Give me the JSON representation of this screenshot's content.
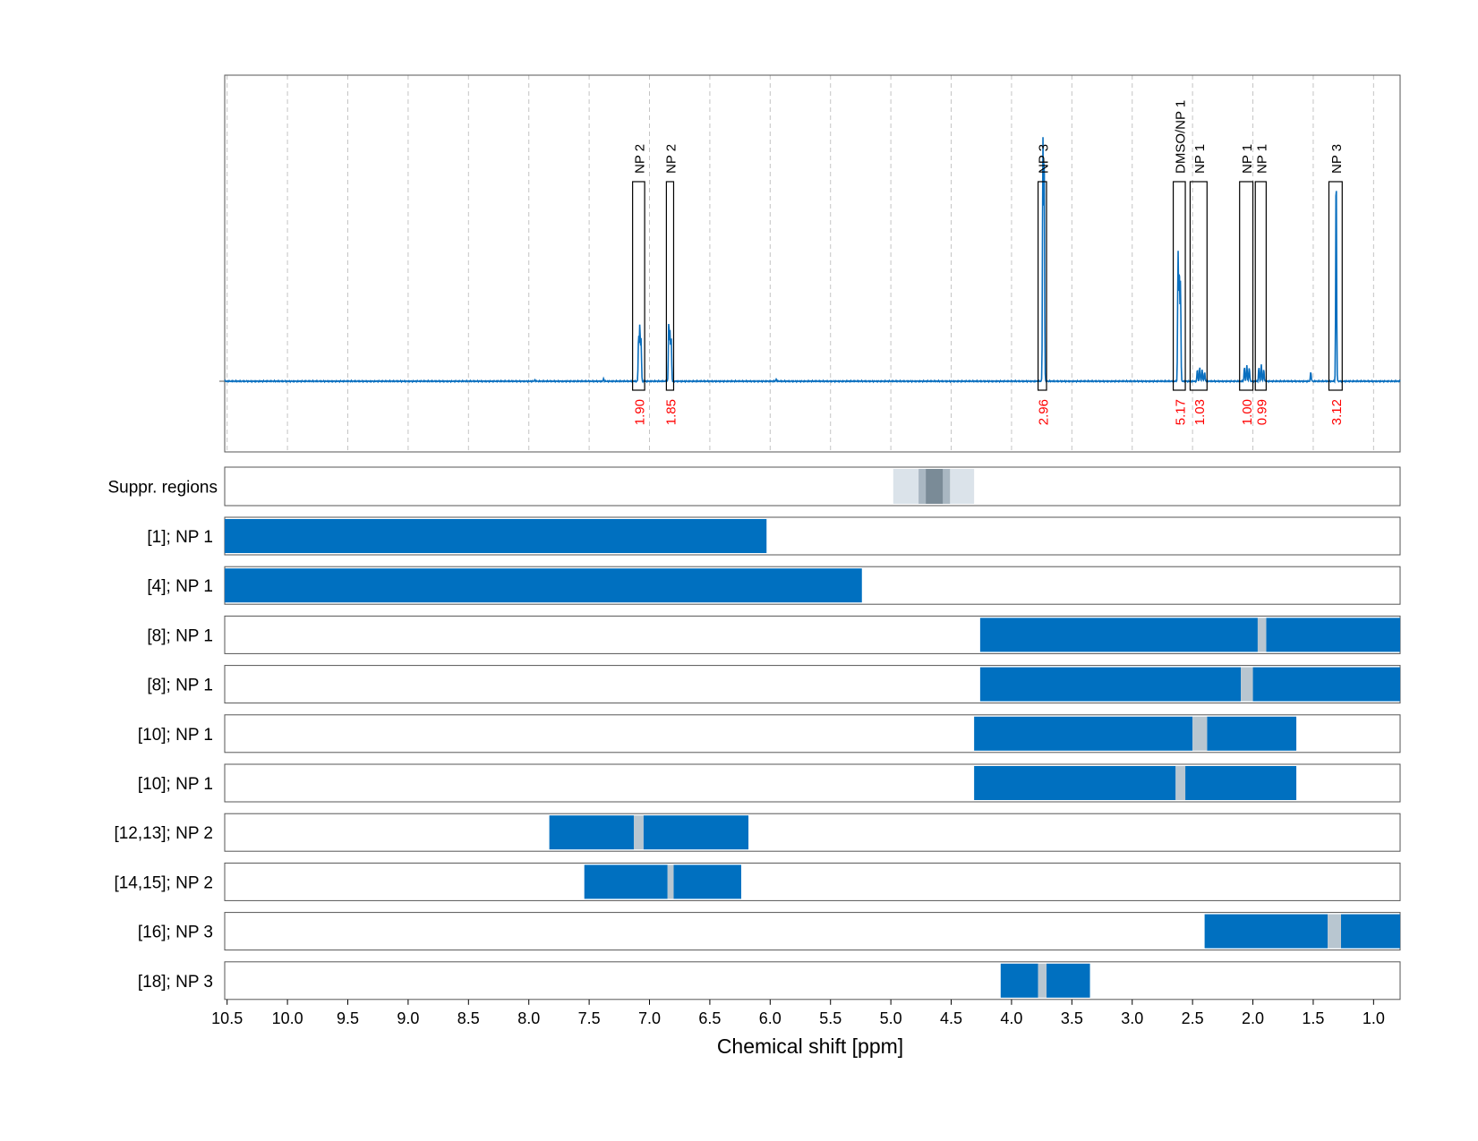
{
  "chart_data": {
    "type": "line",
    "xlabel": "Chemical shift [ppm]",
    "xlim": [
      10.52,
      0.78
    ],
    "x_reversed": true,
    "x_ticks": [
      10.5,
      10.0,
      9.5,
      9.0,
      8.5,
      8.0,
      7.5,
      7.0,
      6.5,
      6.0,
      5.5,
      5.0,
      4.5,
      4.0,
      3.5,
      3.0,
      2.5,
      2.0,
      1.5,
      1.0
    ],
    "x_tick_labels": [
      "10.5",
      "10.0",
      "9.5",
      "9.0",
      "8.5",
      "8.0",
      "7.5",
      "7.0",
      "6.5",
      "6.0",
      "5.5",
      "5.0",
      "4.5",
      "4.0",
      "3.5",
      "3.0",
      "2.5",
      "2.0",
      "1.5",
      "1.0"
    ],
    "grid": "vertical dashed",
    "colors": {
      "signal": "#0a6fbf",
      "bar": "#0070c0",
      "gap": "#b8c6d0",
      "annotation": "#ff0000",
      "frame": "#555555"
    },
    "spectrum": {
      "baseline": 0,
      "ylim": [
        -0.4,
        1.2
      ],
      "peaks": [
        {
          "x": 7.09,
          "h": 0.2
        },
        {
          "x": 7.08,
          "h": 0.24
        },
        {
          "x": 7.07,
          "h": 0.18
        },
        {
          "x": 6.84,
          "h": 0.26
        },
        {
          "x": 6.83,
          "h": 0.21
        },
        {
          "x": 6.82,
          "h": 0.19
        },
        {
          "x": 3.74,
          "h": 1.02
        },
        {
          "x": 3.73,
          "h": 1.0
        },
        {
          "x": 2.62,
          "h": 0.55
        },
        {
          "x": 2.61,
          "h": 0.48
        },
        {
          "x": 2.6,
          "h": 0.42
        },
        {
          "x": 2.46,
          "h": 0.05
        },
        {
          "x": 2.44,
          "h": 0.06
        },
        {
          "x": 2.42,
          "h": 0.05
        },
        {
          "x": 2.4,
          "h": 0.04
        },
        {
          "x": 2.07,
          "h": 0.06
        },
        {
          "x": 2.05,
          "h": 0.07
        },
        {
          "x": 2.03,
          "h": 0.06
        },
        {
          "x": 1.95,
          "h": 0.06
        },
        {
          "x": 1.93,
          "h": 0.07
        },
        {
          "x": 1.91,
          "h": 0.05
        },
        {
          "x": 1.52,
          "h": 0.04
        },
        {
          "x": 1.31,
          "h": 0.92
        },
        {
          "x": 7.95,
          "h": 0.005
        },
        {
          "x": 7.38,
          "h": 0.01
        },
        {
          "x": 5.95,
          "h": 0.008
        }
      ],
      "annotations": [
        {
          "x1": 7.14,
          "x2": 7.04,
          "label": "NP 2",
          "integral": "1.90"
        },
        {
          "x1": 6.86,
          "x2": 6.8,
          "label": "NP 2",
          "integral": "1.85"
        },
        {
          "x1": 3.78,
          "x2": 3.71,
          "label": "NP 3",
          "integral": "2.96"
        },
        {
          "x1": 2.66,
          "x2": 2.56,
          "label": "DMSO/NP 1",
          "integral": "5.17"
        },
        {
          "x1": 2.52,
          "x2": 2.38,
          "label": "NP 1",
          "integral": "1.03"
        },
        {
          "x1": 2.11,
          "x2": 2.0,
          "label": "NP 1",
          "integral": "1.00"
        },
        {
          "x1": 1.98,
          "x2": 1.89,
          "label": "NP 1",
          "integral": "0.99"
        },
        {
          "x1": 1.37,
          "x2": 1.26,
          "label": "NP 3",
          "integral": "3.12"
        }
      ]
    },
    "suppressed_regions": {
      "label": "Suppr. regions",
      "regions": [
        {
          "x1": 4.98,
          "x2": 4.31,
          "shade": "#dbe3ea"
        },
        {
          "x1": 4.77,
          "x2": 4.51,
          "shade": "#a9b7c2"
        },
        {
          "x1": 4.71,
          "x2": 4.57,
          "shade": "#7a8b97"
        }
      ]
    },
    "tracks": [
      {
        "label": "[1]; NP 1",
        "segments": [
          [
            10.52,
            6.03
          ]
        ],
        "gaps": []
      },
      {
        "label": "[4]; NP 1",
        "segments": [
          [
            10.52,
            5.24
          ]
        ],
        "gaps": []
      },
      {
        "label": "[8]; NP 1",
        "segments": [
          [
            4.26,
            1.96
          ],
          [
            1.89,
            0.78
          ]
        ],
        "gaps": [
          [
            1.96,
            1.89
          ]
        ]
      },
      {
        "label": "[8]; NP 1",
        "segments": [
          [
            4.26,
            2.1
          ],
          [
            2.0,
            0.78
          ]
        ],
        "gaps": [
          [
            2.1,
            2.0
          ]
        ]
      },
      {
        "label": "[10]; NP 1",
        "segments": [
          [
            4.31,
            2.5
          ],
          [
            2.38,
            1.64
          ]
        ],
        "gaps": [
          [
            2.5,
            2.38
          ]
        ]
      },
      {
        "label": "[10]; NP 1",
        "segments": [
          [
            4.31,
            2.64
          ],
          [
            2.56,
            1.64
          ]
        ],
        "gaps": [
          [
            2.64,
            2.56
          ]
        ]
      },
      {
        "label": "[12,13]; NP 2",
        "segments": [
          [
            7.83,
            7.13
          ],
          [
            7.05,
            6.18
          ]
        ],
        "gaps": [
          [
            7.13,
            7.05
          ]
        ]
      },
      {
        "label": "[14,15]; NP 2",
        "segments": [
          [
            7.54,
            6.85
          ],
          [
            6.8,
            6.24
          ]
        ],
        "gaps": [
          [
            6.85,
            6.8
          ]
        ]
      },
      {
        "label": "[16]; NP 3",
        "segments": [
          [
            2.4,
            1.38
          ],
          [
            1.27,
            0.78
          ]
        ],
        "gaps": [
          [
            1.38,
            1.27
          ]
        ]
      },
      {
        "label": "[18]; NP 3",
        "segments": [
          [
            4.09,
            3.78
          ],
          [
            3.71,
            3.35
          ]
        ],
        "gaps": [
          [
            3.78,
            3.71
          ]
        ]
      }
    ]
  }
}
